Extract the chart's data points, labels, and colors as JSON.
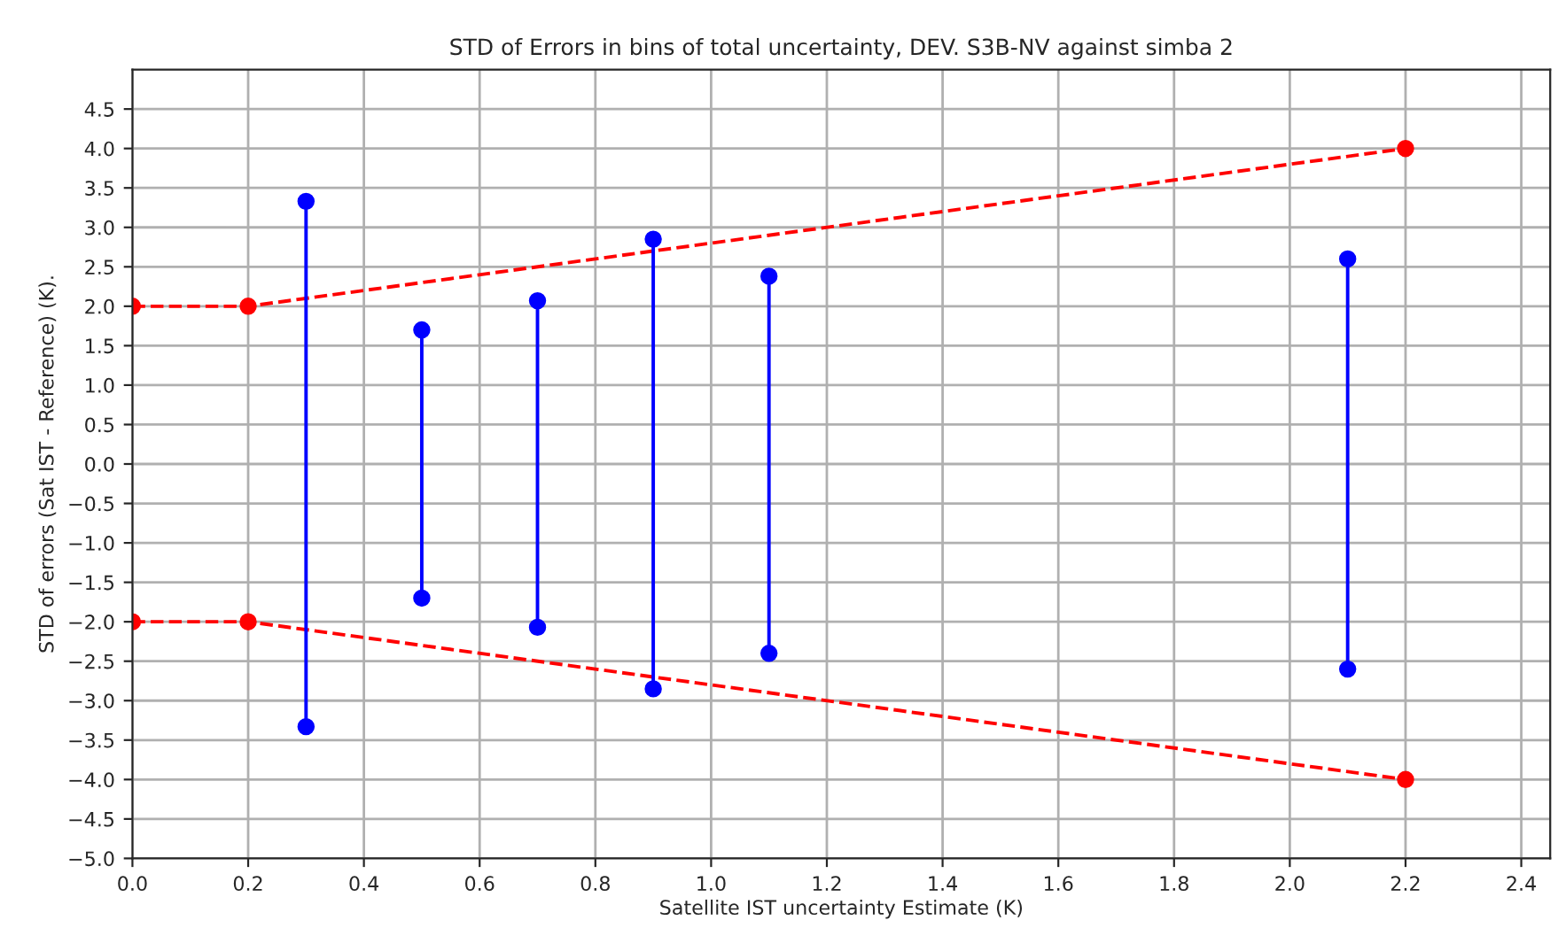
{
  "chart_data": {
    "type": "line",
    "title": "STD of Errors in bins of total uncertainty, DEV. S3B-NV against simba 2",
    "xlabel": "Satellite IST uncertainty Estimate (K)",
    "ylabel": "STD of errors (Sat IST - Reference) (K).",
    "series": [
      {
        "color": "#ff0000",
        "line_style": "dashed",
        "x": [
          0,
          0.2,
          2.2
        ],
        "values": [
          2,
          2,
          4
        ]
      },
      {
        "color": "#ff0000",
        "line_style": "dashed",
        "x": [
          0,
          0.2,
          2.2
        ],
        "values": [
          -2,
          -2,
          -4
        ]
      },
      {
        "color": "#0000ff",
        "line_style": "solid",
        "x": [
          0.3,
          0.3
        ],
        "values": [
          -3.33,
          3.33
        ]
      },
      {
        "color": "#0000ff",
        "line_style": "solid",
        "x": [
          0.5,
          0.5
        ],
        "values": [
          -1.7,
          1.7
        ]
      },
      {
        "color": "#0000ff",
        "line_style": "solid",
        "x": [
          0.7,
          0.7
        ],
        "values": [
          -2.07,
          2.07
        ]
      },
      {
        "color": "#0000ff",
        "line_style": "solid",
        "x": [
          0.9,
          0.9
        ],
        "values": [
          -2.85,
          2.85
        ]
      },
      {
        "color": "#0000ff",
        "line_style": "solid",
        "x": [
          1.1,
          1.1
        ],
        "values": [
          -2.4,
          2.38
        ]
      },
      {
        "color": "#0000ff",
        "line_style": "solid",
        "x": [
          2.1,
          2.1
        ],
        "values": [
          -2.6,
          2.6
        ]
      }
    ],
    "marker": "circle",
    "grid": true,
    "xlim": [
      0,
      2.45
    ],
    "xticks": [
      {
        "value": 0,
        "label": "0.0"
      },
      0.2,
      0.4,
      0.6,
      0.8,
      {
        "value": 1,
        "label": "1.0"
      },
      1.2,
      1.4,
      1.6,
      1.8,
      {
        "value": 2,
        "label": "2.0"
      },
      2.2,
      2.4
    ],
    "ylim": [
      -5,
      5
    ],
    "yticks": [
      {
        "value": -5,
        "label": "−5.0"
      },
      {
        "value": -4.5,
        "label": "−4.5"
      },
      {
        "value": -4,
        "label": "−4.0"
      },
      {
        "value": -3.5,
        "label": "−3.5"
      },
      {
        "value": -3,
        "label": "−3.0"
      },
      {
        "value": -2.5,
        "label": "−2.5"
      },
      {
        "value": -2,
        "label": "−2.0"
      },
      {
        "value": -1.5,
        "label": "−1.5"
      },
      {
        "value": -1,
        "label": "−1.0"
      },
      {
        "value": -0.5,
        "label": "−0.5"
      },
      {
        "value": 0,
        "label": "0.0"
      },
      0.5,
      {
        "value": 1,
        "label": "1.0"
      },
      1.5,
      {
        "value": 2,
        "label": "2.0"
      },
      2.5,
      {
        "value": 3,
        "label": "3.0"
      },
      3.5,
      {
        "value": 4,
        "label": "4.0"
      },
      4.5
    ]
  }
}
